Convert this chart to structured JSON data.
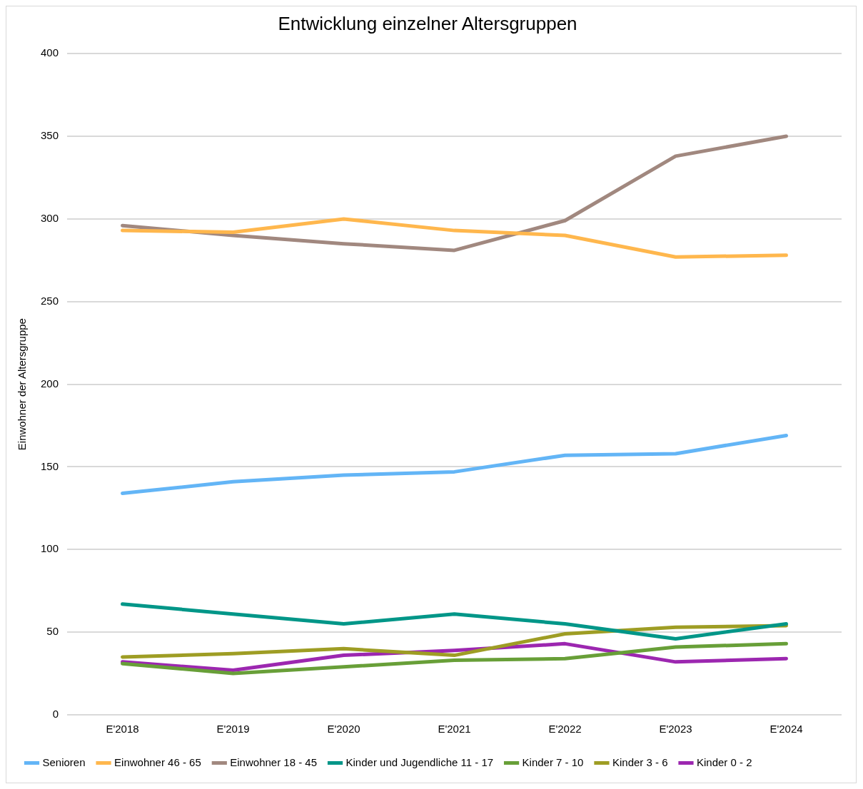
{
  "chart_data": {
    "type": "line",
    "title": "Entwicklung einzelner Altersgruppen",
    "ylabel": "Einwohner der Altersgruppe",
    "categories": [
      "E'2018",
      "E'2019",
      "E'2020",
      "E'2021",
      "E'2022",
      "E'2023",
      "E'2024"
    ],
    "series": [
      {
        "name": "Senioren",
        "color": "#63b5f6",
        "values": [
          134,
          141,
          145,
          147,
          157,
          158,
          169
        ]
      },
      {
        "name": "Einwohner 46 - 65",
        "color": "#ffb74d",
        "values": [
          293,
          292,
          300,
          293,
          290,
          277,
          278
        ]
      },
      {
        "name": "Einwohner 18 - 45",
        "color": "#a1887f",
        "values": [
          296,
          290,
          285,
          281,
          299,
          338,
          350
        ]
      },
      {
        "name": "Kinder und Jugendliche 11 - 17",
        "color": "#009688",
        "values": [
          67,
          61,
          55,
          61,
          55,
          46,
          55
        ]
      },
      {
        "name": "Kinder 7 - 10",
        "color": "#689f38",
        "values": [
          31,
          25,
          29,
          33,
          34,
          41,
          43
        ]
      },
      {
        "name": "Kinder 3 - 6",
        "color": "#9e9d24",
        "values": [
          35,
          37,
          40,
          36,
          49,
          53,
          54
        ]
      },
      {
        "name": "Kinder 0 - 2",
        "color": "#9c27b0",
        "values": [
          32,
          27,
          36,
          39,
          43,
          32,
          34
        ]
      }
    ],
    "ylim": [
      0,
      400
    ],
    "yticks": [
      0,
      50,
      100,
      150,
      200,
      250,
      300,
      350,
      400
    ],
    "grid": "y",
    "legend": "bottom",
    "marker": "none",
    "line_style": "solid"
  }
}
